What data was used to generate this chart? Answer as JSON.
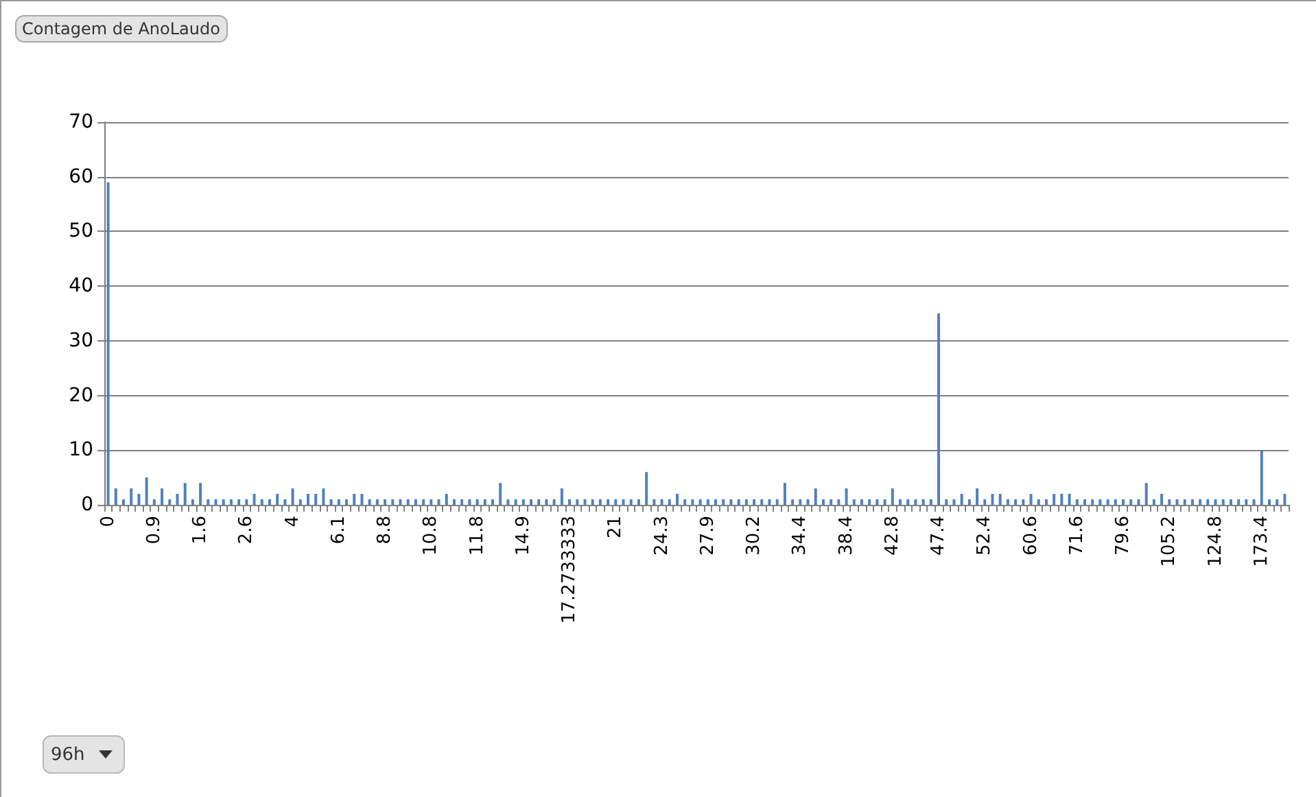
{
  "chart_data": {
    "type": "bar",
    "title": "Contagem de AnoLaudo",
    "annotations": [
      "96h"
    ],
    "categories": [
      "0",
      null,
      null,
      null,
      null,
      null,
      "0.9",
      null,
      null,
      null,
      null,
      null,
      "1.6",
      null,
      null,
      null,
      null,
      null,
      "2.6",
      null,
      null,
      null,
      null,
      null,
      "4",
      null,
      null,
      null,
      null,
      null,
      "6.1",
      null,
      null,
      null,
      null,
      null,
      "8.8",
      null,
      null,
      null,
      null,
      null,
      "10.8",
      null,
      null,
      null,
      null,
      null,
      "11.8",
      null,
      null,
      null,
      null,
      null,
      "14.9",
      null,
      null,
      null,
      null,
      null,
      "17.2733333",
      null,
      null,
      null,
      null,
      null,
      "21",
      null,
      null,
      null,
      null,
      null,
      "24.3",
      null,
      null,
      null,
      null,
      null,
      "27.9",
      null,
      null,
      null,
      null,
      null,
      "30.2",
      null,
      null,
      null,
      null,
      null,
      "34.4",
      null,
      null,
      null,
      null,
      null,
      "38.4",
      null,
      null,
      null,
      null,
      null,
      "42.8",
      null,
      null,
      null,
      null,
      null,
      "47.4",
      null,
      null,
      null,
      null,
      null,
      "52.4",
      null,
      null,
      null,
      null,
      null,
      "60.6",
      null,
      null,
      null,
      null,
      null,
      "71.6",
      null,
      null,
      null,
      null,
      null,
      "79.6",
      null,
      null,
      null,
      null,
      null,
      "105.2",
      null,
      null,
      null,
      null,
      null,
      "124.8",
      null,
      null,
      null,
      null,
      null,
      "173.4",
      null,
      null,
      null
    ],
    "values": [
      59,
      3,
      1,
      3,
      2,
      5,
      1,
      3,
      1,
      2,
      4,
      1,
      4,
      1,
      1,
      1,
      1,
      1,
      1,
      2,
      1,
      1,
      2,
      1,
      3,
      1,
      2,
      2,
      3,
      1,
      1,
      1,
      2,
      2,
      1,
      1,
      1,
      1,
      1,
      1,
      1,
      1,
      1,
      1,
      2,
      1,
      1,
      1,
      1,
      1,
      1,
      4,
      1,
      1,
      1,
      1,
      1,
      1,
      1,
      3,
      1,
      1,
      1,
      1,
      1,
      1,
      1,
      1,
      1,
      1,
      6,
      1,
      1,
      1,
      2,
      1,
      1,
      1,
      1,
      1,
      1,
      1,
      1,
      1,
      1,
      1,
      1,
      1,
      4,
      1,
      1,
      1,
      3,
      1,
      1,
      1,
      3,
      1,
      1,
      1,
      1,
      1,
      3,
      1,
      1,
      1,
      1,
      1,
      35,
      1,
      1,
      2,
      1,
      3,
      1,
      2,
      2,
      1,
      1,
      1,
      2,
      1,
      1,
      2,
      2,
      2,
      1,
      1,
      1,
      1,
      1,
      1,
      1,
      1,
      1,
      4,
      1,
      2,
      1,
      1,
      1,
      1,
      1,
      1,
      1,
      1,
      1,
      1,
      1,
      1,
      10,
      1,
      1,
      2
    ],
    "color": "#4f81bd",
    "ylim": [
      0,
      70
    ],
    "yticks": [
      0,
      10,
      20,
      30,
      40,
      50,
      60,
      70
    ],
    "grid": "y"
  }
}
